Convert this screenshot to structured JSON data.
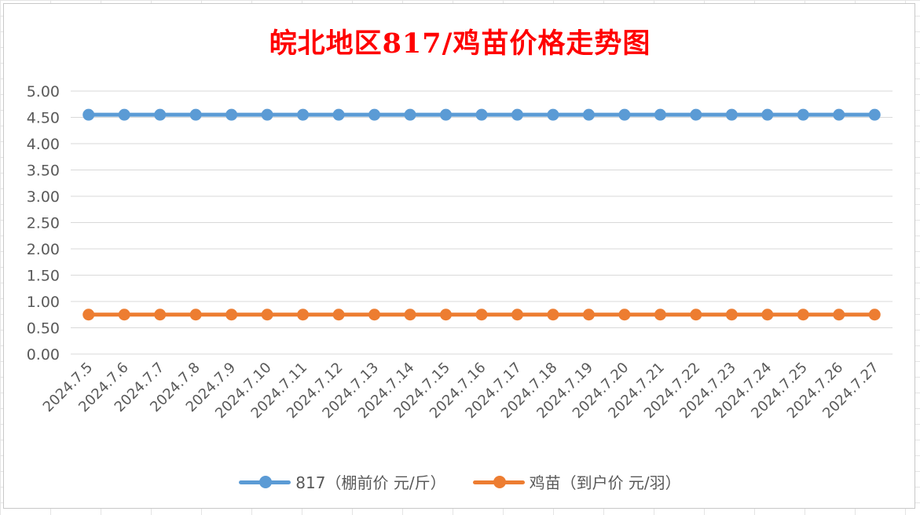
{
  "chart_data": {
    "type": "line",
    "title": "皖北地区817/鸡苗价格走势图",
    "categories": [
      "2024.7.5",
      "2024.7.6",
      "2024.7.7",
      "2024.7.8",
      "2024.7.9",
      "2024.7.10",
      "2024.7.11",
      "2024.7.12",
      "2024.7.13",
      "2024.7.14",
      "2024.7.15",
      "2024.7.16",
      "2024.7.17",
      "2024.7.18",
      "2024.7.19",
      "2024.7.20",
      "2024.7.21",
      "2024.7.22",
      "2024.7.23",
      "2024.7.24",
      "2024.7.25",
      "2024.7.26",
      "2024.7.27"
    ],
    "series": [
      {
        "name": "817（棚前价 元/斤）",
        "color": "#5b9bd5",
        "values": [
          4.55,
          4.55,
          4.55,
          4.55,
          4.55,
          4.55,
          4.55,
          4.55,
          4.55,
          4.55,
          4.55,
          4.55,
          4.55,
          4.55,
          4.55,
          4.55,
          4.55,
          4.55,
          4.55,
          4.55,
          4.55,
          4.55,
          4.55
        ]
      },
      {
        "name": "鸡苗（到户价 元/羽）",
        "color": "#ed7d31",
        "values": [
          0.75,
          0.75,
          0.75,
          0.75,
          0.75,
          0.75,
          0.75,
          0.75,
          0.75,
          0.75,
          0.75,
          0.75,
          0.75,
          0.75,
          0.75,
          0.75,
          0.75,
          0.75,
          0.75,
          0.75,
          0.75,
          0.75,
          0.75
        ]
      }
    ],
    "ylim": [
      0,
      5
    ],
    "yticks": [
      "0.00",
      "0.50",
      "1.00",
      "1.50",
      "2.00",
      "2.50",
      "3.00",
      "3.50",
      "4.00",
      "4.50",
      "5.00"
    ],
    "xlabel": "",
    "ylabel": "",
    "grid": true,
    "legend_position": "bottom",
    "title_color": "#ff0000"
  }
}
